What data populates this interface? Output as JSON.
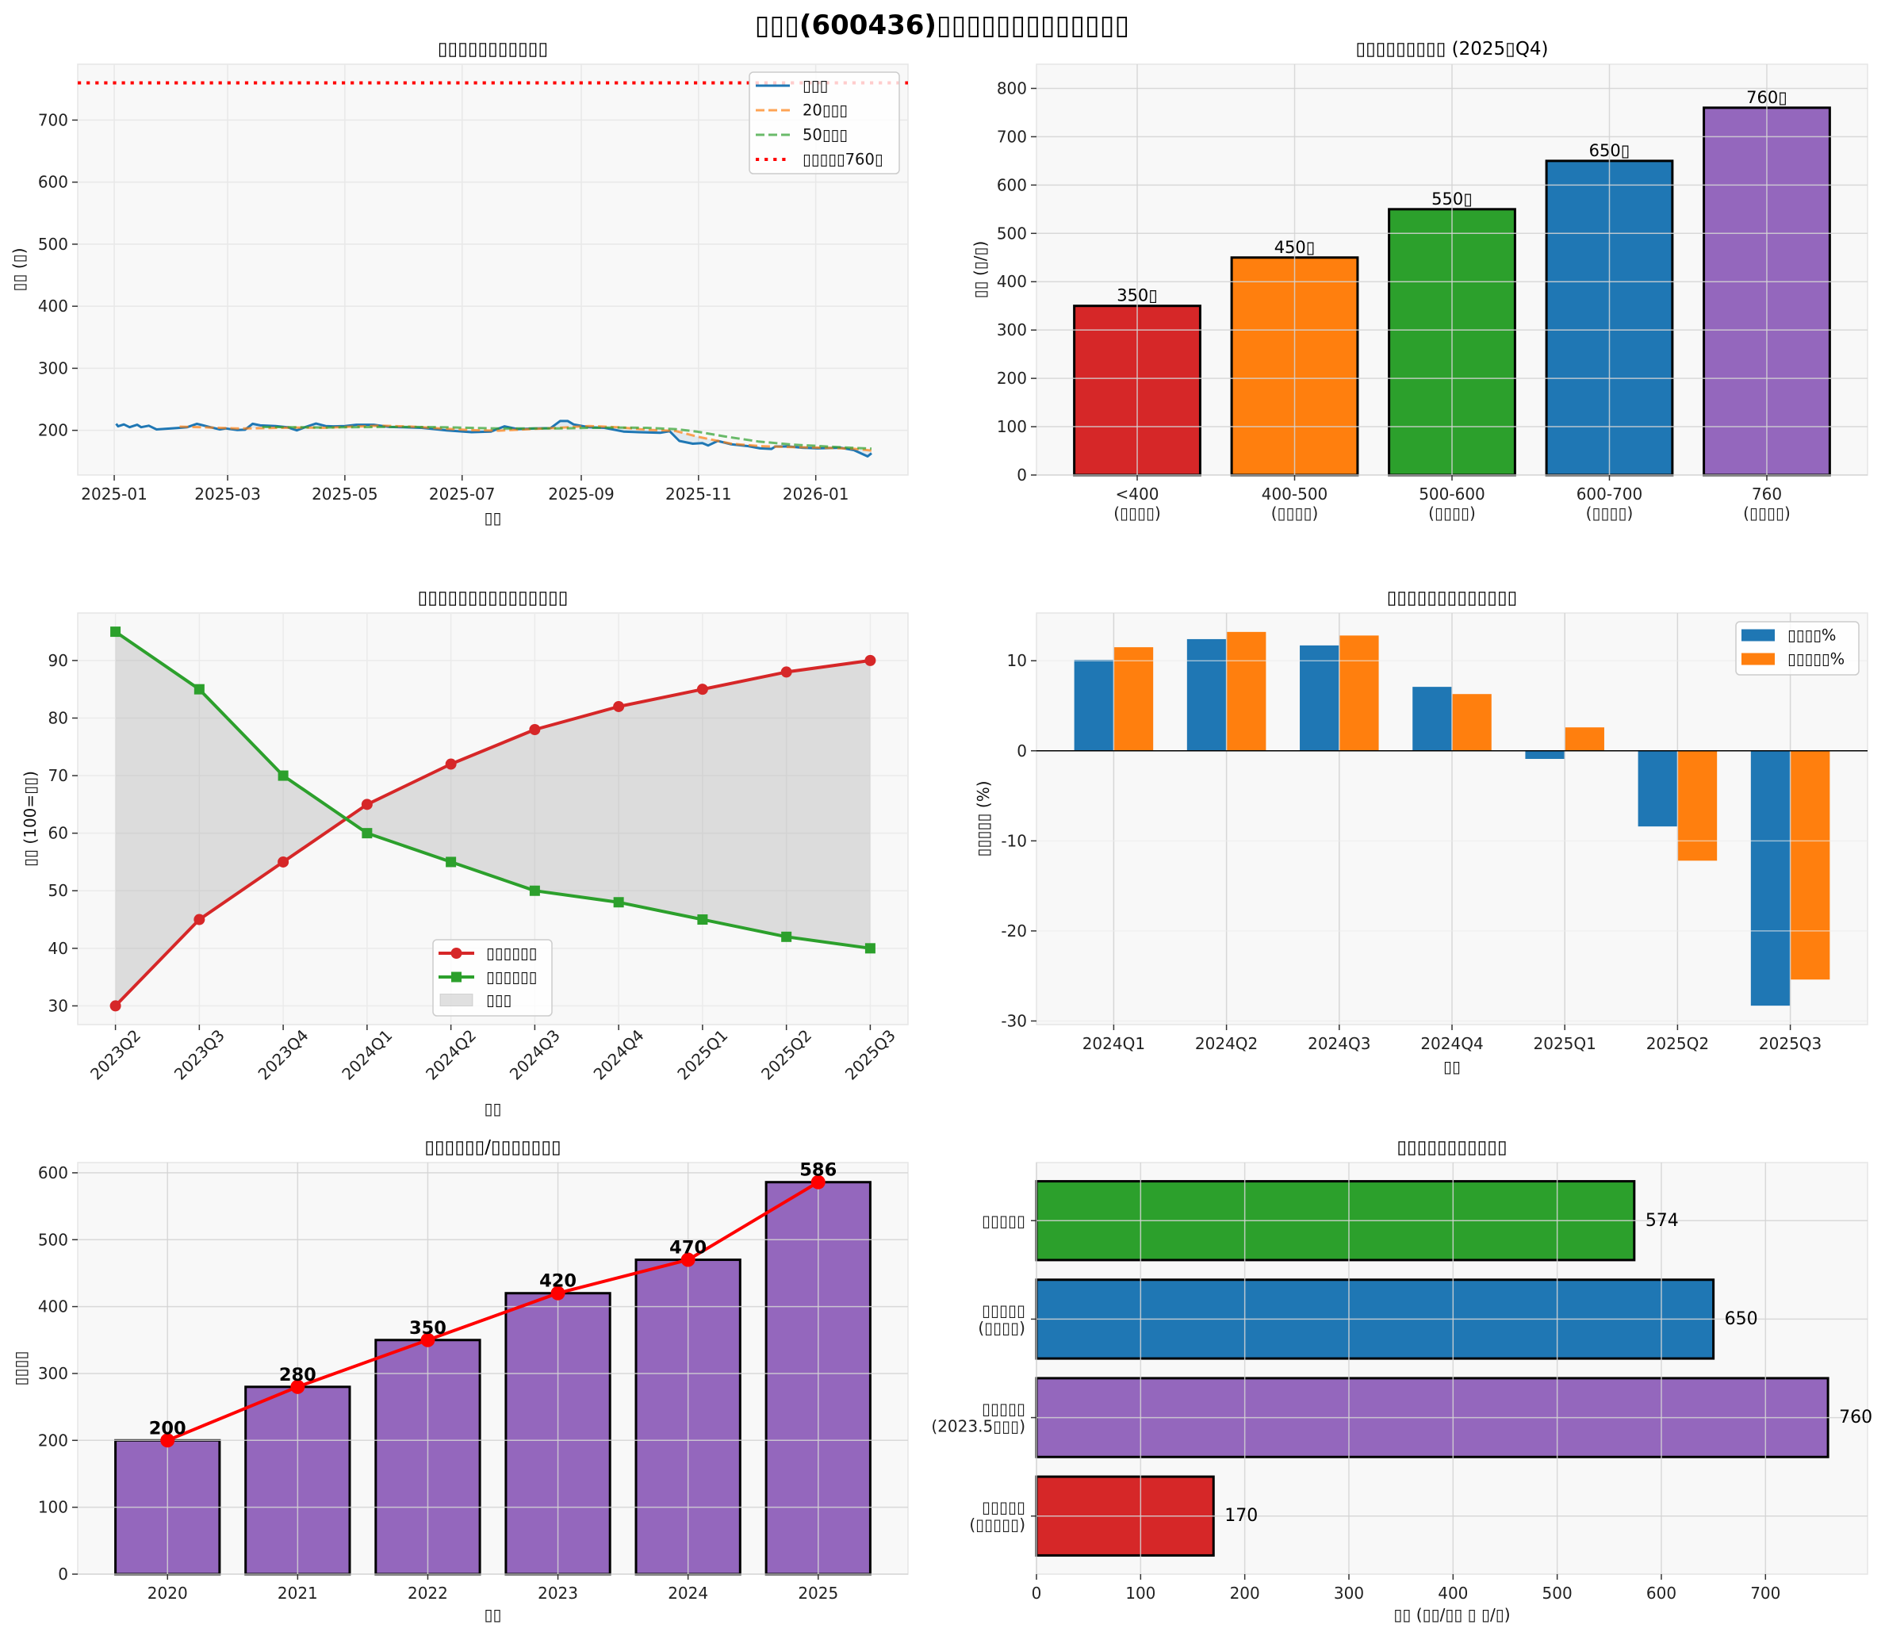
{
  "figure": {
    "title": "▯▯▯(600436)▯▯▯▯▯▯▯▯▯▯▯▯▯"
  },
  "chart_data": [
    {
      "type": "line",
      "title": "▯▯▯▯▯▯▯▯▯▯▯",
      "xlabel": "▯▯",
      "ylabel": "▯▯ (▯)",
      "xlim": [
        "2024-12-13",
        "2026-02-18"
      ],
      "ylim": [
        128,
        790
      ],
      "xticks": [
        "2025-01-01",
        "2025-03-01",
        "2025-05-01",
        "2025-07-01",
        "2025-09-01",
        "2025-11-01",
        "2026-01-01"
      ],
      "xtick_labels": [
        "2025-01",
        "2025-03",
        "2025-05",
        "2025-07",
        "2025-09",
        "2025-11",
        "2026-01"
      ],
      "yticks": [
        200,
        300,
        400,
        500,
        600,
        700
      ],
      "ytick_labels": [
        "200",
        "300",
        "400",
        "500",
        "600",
        "700"
      ],
      "grid": true,
      "legend": {
        "position": "top-right"
      },
      "series": [
        {
          "name": "▯▯▯",
          "color": "#1f77b4",
          "style": "solid",
          "points": [
            [
              "2025-01-02",
              210.5
            ],
            [
              "2025-01-03",
              206.5
            ],
            [
              "2025-01-06",
              209.5
            ],
            [
              "2025-01-09",
              205
            ],
            [
              "2025-01-13",
              209
            ],
            [
              "2025-01-15",
              205
            ],
            [
              "2025-01-19",
              207.5
            ],
            [
              "2025-01-23",
              201.5
            ],
            [
              "2025-02-04",
              204
            ],
            [
              "2025-02-08",
              205
            ],
            [
              "2025-02-13",
              210.5
            ],
            [
              "2025-02-20",
              205
            ],
            [
              "2025-02-25",
              201.5
            ],
            [
              "2025-02-28",
              203
            ],
            [
              "2025-03-06",
              200.5
            ],
            [
              "2025-03-10",
              201
            ],
            [
              "2025-03-14",
              210.5
            ],
            [
              "2025-03-18",
              208
            ],
            [
              "2025-03-26",
              207
            ],
            [
              "2025-04-01",
              205
            ],
            [
              "2025-04-06",
              200
            ],
            [
              "2025-04-11",
              206
            ],
            [
              "2025-04-16",
              211
            ],
            [
              "2025-04-21",
              207
            ],
            [
              "2025-04-25",
              206.5
            ],
            [
              "2025-05-01",
              207
            ],
            [
              "2025-05-07",
              209
            ],
            [
              "2025-05-16",
              209
            ],
            [
              "2025-05-24",
              205.5
            ],
            [
              "2025-05-31",
              205
            ],
            [
              "2025-06-10",
              204
            ],
            [
              "2025-06-23",
              200
            ],
            [
              "2025-07-06",
              197
            ],
            [
              "2025-07-16",
              198
            ],
            [
              "2025-07-23",
              206.5
            ],
            [
              "2025-07-30",
              202
            ],
            [
              "2025-08-08",
              203
            ],
            [
              "2025-08-16",
              203.5
            ],
            [
              "2025-08-21",
              215
            ],
            [
              "2025-08-25",
              215
            ],
            [
              "2025-08-28",
              209.5
            ],
            [
              "2025-09-05",
              205
            ],
            [
              "2025-09-13",
              204
            ],
            [
              "2025-09-23",
              198
            ],
            [
              "2025-10-01",
              197
            ],
            [
              "2025-10-12",
              196
            ],
            [
              "2025-10-17",
              198.5
            ],
            [
              "2025-10-22",
              183
            ],
            [
              "2025-10-29",
              178.5
            ],
            [
              "2025-11-03",
              179.5
            ],
            [
              "2025-11-06",
              175.5
            ],
            [
              "2025-11-11",
              183
            ],
            [
              "2025-11-18",
              177.5
            ],
            [
              "2025-11-27",
              174.5
            ],
            [
              "2025-12-03",
              171
            ],
            [
              "2025-12-09",
              170
            ],
            [
              "2025-12-11",
              174
            ],
            [
              "2025-12-18",
              174
            ],
            [
              "2025-12-25",
              172
            ],
            [
              "2026-01-02",
              171
            ],
            [
              "2026-01-14",
              172
            ],
            [
              "2026-01-21",
              168
            ],
            [
              "2026-01-28",
              158
            ],
            [
              "2026-01-30",
              163
            ]
          ]
        },
        {
          "name": "20▯▯▯",
          "color": "#ff7f0e",
          "style": "dashed",
          "points": [
            [
              "2025-02-04",
              206
            ],
            [
              "2025-02-20",
              204.5
            ],
            [
              "2025-03-06",
              203
            ],
            [
              "2025-03-20",
              203.5
            ],
            [
              "2025-04-05",
              204.5
            ],
            [
              "2025-04-20",
              204
            ],
            [
              "2025-05-05",
              206
            ],
            [
              "2025-05-20",
              207.5
            ],
            [
              "2025-06-05",
              206
            ],
            [
              "2025-06-20",
              203
            ],
            [
              "2025-07-05",
              200.5
            ],
            [
              "2025-07-20",
              199.5
            ],
            [
              "2025-08-05",
              202
            ],
            [
              "2025-08-20",
              204
            ],
            [
              "2025-09-05",
              207
            ],
            [
              "2025-09-20",
              205
            ],
            [
              "2025-10-05",
              201
            ],
            [
              "2025-10-20",
              199
            ],
            [
              "2025-11-01",
              189.5
            ],
            [
              "2025-11-18",
              178.5
            ],
            [
              "2025-12-03",
              174.5
            ],
            [
              "2025-12-20",
              173
            ],
            [
              "2026-01-05",
              172
            ],
            [
              "2026-01-20",
              170.5
            ],
            [
              "2026-01-30",
              167.5
            ]
          ]
        },
        {
          "name": "50▯▯▯",
          "color": "#2ca02c",
          "style": "dashed",
          "points": [
            [
              "2025-03-19",
              205.5
            ],
            [
              "2025-04-05",
              205
            ],
            [
              "2025-04-20",
              204.5
            ],
            [
              "2025-05-05",
              205
            ],
            [
              "2025-05-20",
              205.5
            ],
            [
              "2025-06-05",
              205.5
            ],
            [
              "2025-06-20",
              205
            ],
            [
              "2025-07-05",
              204
            ],
            [
              "2025-07-20",
              203
            ],
            [
              "2025-08-05",
              203
            ],
            [
              "2025-08-20",
              203
            ],
            [
              "2025-09-05",
              204
            ],
            [
              "2025-09-20",
              204.5
            ],
            [
              "2025-10-05",
              204
            ],
            [
              "2025-10-20",
              202
            ],
            [
              "2025-10-31",
              198
            ],
            [
              "2025-11-15",
              190
            ],
            [
              "2025-12-02",
              182
            ],
            [
              "2025-12-20",
              177
            ],
            [
              "2026-01-01",
              175
            ],
            [
              "2026-01-15",
              172.5
            ],
            [
              "2026-01-30",
              170.5
            ]
          ]
        }
      ],
      "reference_line": {
        "name": "▯▯▯▯▯760▯",
        "value": 760,
        "color": "#ff0000",
        "style": "dotted"
      }
    },
    {
      "type": "bar",
      "title": "▯▯▯▯▯▯▯▯▯ (2025▯Q4)",
      "ylabel": "▯▯ (▯/▯)",
      "categories": [
        [
          "<400",
          "(▯▯▯▯)"
        ],
        [
          "400-500",
          "(▯▯▯▯)"
        ],
        [
          "500-600",
          "(▯▯▯▯)"
        ],
        [
          "600-700",
          "(▯▯▯▯)"
        ],
        [
          "760",
          "(▯▯▯▯)"
        ]
      ],
      "values": [
        350,
        450,
        550,
        650,
        760
      ],
      "data_labels": [
        "350▯",
        "450▯",
        "550▯",
        "650▯",
        "760▯"
      ],
      "colors": [
        "#d62728",
        "#ff7f0e",
        "#2ca02c",
        "#1f77b4",
        "#9467bd"
      ],
      "ylim": [
        0,
        850
      ],
      "yticks": [
        0,
        100,
        200,
        300,
        400,
        500,
        600,
        700,
        800
      ],
      "ytick_labels": [
        "0",
        "100",
        "200",
        "300",
        "400",
        "500",
        "600",
        "700",
        "800"
      ],
      "grid": true
    },
    {
      "type": "line",
      "title": "▯▯▯▯▯▯▯▯▯▯▯▯▯▯▯",
      "xlabel": "▯▯",
      "ylabel": "▯▯ (100=▯▯)",
      "categories": [
        "2023Q2",
        "2023Q3",
        "2023Q4",
        "2024Q1",
        "2024Q2",
        "2024Q3",
        "2024Q4",
        "2025Q1",
        "2025Q2",
        "2025Q3"
      ],
      "series": [
        {
          "name": "▯▯▯▯▯▯",
          "color": "#d62728",
          "marker": "circle",
          "values": [
            30,
            45,
            55,
            65,
            72,
            78,
            82,
            85,
            88,
            90
          ]
        },
        {
          "name": "▯▯▯▯▯▯",
          "color": "#2ca02c",
          "marker": "square",
          "values": [
            95,
            85,
            70,
            60,
            55,
            50,
            48,
            45,
            42,
            40
          ]
        }
      ],
      "fill_between": {
        "name": "▯▯▯",
        "color": "#9a9a9a"
      },
      "ylim": [
        26.75,
        98.25
      ],
      "yticks": [
        30,
        40,
        50,
        60,
        70,
        80,
        90
      ],
      "ytick_labels": [
        "30",
        "40",
        "50",
        "60",
        "70",
        "80",
        "90"
      ],
      "grid": true,
      "legend": {
        "position": "bottom-center"
      }
    },
    {
      "type": "bar",
      "title": "▯▯▯▯▯▯▯▯▯▯▯▯▯",
      "xlabel": "▯▯",
      "ylabel": "▯▯▯▯▯ (%)",
      "categories": [
        "2024Q1",
        "2024Q2",
        "2024Q3",
        "2024Q4",
        "2025Q1",
        "2025Q2",
        "2025Q3"
      ],
      "series": [
        {
          "name": "▯▯▯▯%",
          "color": "#1f77b4",
          "values": [
            10.1,
            12.4,
            11.7,
            7.1,
            -0.9,
            -8.4,
            -28.3
          ]
        },
        {
          "name": "▯▯▯▯▯%",
          "color": "#ff7f0e",
          "values": [
            11.5,
            13.2,
            12.8,
            6.3,
            2.6,
            -12.2,
            -25.4
          ]
        }
      ],
      "ylim": [
        -30.4,
        15.3
      ],
      "yticks": [
        -30,
        -20,
        -10,
        0,
        10
      ],
      "ytick_labels": [
        "-30",
        "-20",
        "-10",
        "0",
        "10"
      ],
      "zero_line_color": "#000000",
      "grid": true,
      "legend": {
        "position": "top-right"
      }
    },
    {
      "type": "bar",
      "title": "▯▯▯▯▯▯/▯▯▯▯▯▯▯",
      "xlabel": "▯▯",
      "ylabel": "▯▯▯▯",
      "categories": [
        "2020",
        "2021",
        "2022",
        "2023",
        "2024",
        "2025"
      ],
      "values": [
        200,
        280,
        350,
        420,
        470,
        586
      ],
      "data_labels": [
        "200",
        "280",
        "350",
        "420",
        "470",
        "586"
      ],
      "bar_color": "#9467bd",
      "line_color": "#ff0000",
      "ylim": [
        0,
        615.3
      ],
      "yticks": [
        0,
        100,
        200,
        300,
        400,
        500,
        600
      ],
      "ytick_labels": [
        "0",
        "100",
        "200",
        "300",
        "400",
        "500",
        "600"
      ],
      "grid": true
    },
    {
      "type": "bar",
      "orientation": "horizontal",
      "title": "▯▯▯▯▯▯▯▯▯▯▯",
      "xlabel": "▯▯ (▯▯/▯▯ ▯ ▯/▯)",
      "categories": [
        [
          "▯▯▯▯▯",
          "(▯▯▯▯▯)"
        ],
        [
          "▯▯▯▯▯",
          "(2023.5▯▯▯)"
        ],
        [
          "▯▯▯▯▯",
          "(▯▯▯▯)"
        ],
        [
          "▯▯▯▯▯"
        ]
      ],
      "values": [
        170,
        760,
        650,
        574
      ],
      "data_labels": [
        "170",
        "760",
        "650",
        "574"
      ],
      "colors": [
        "#d62728",
        "#9467bd",
        "#1f77b4",
        "#2ca02c"
      ],
      "xlim": [
        0,
        798
      ],
      "xticks": [
        0,
        100,
        200,
        300,
        400,
        500,
        600,
        700
      ],
      "xtick_labels": [
        "0",
        "100",
        "200",
        "300",
        "400",
        "500",
        "600",
        "700"
      ],
      "grid": true
    }
  ]
}
